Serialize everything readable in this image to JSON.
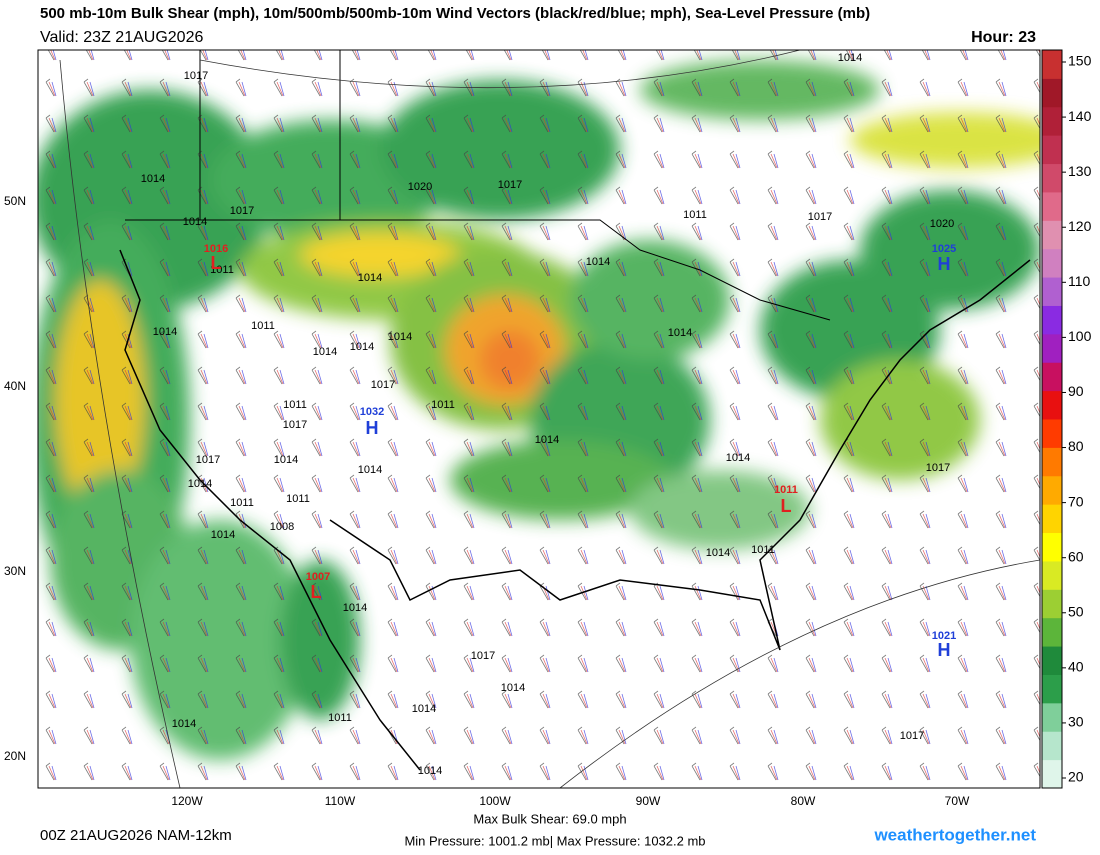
{
  "header": {
    "title": "500 mb-10m Bulk Shear (mph), 10m/500mb/500mb-10m Wind Vectors (black/red/blue; mph), Sea-Level Pressure (mb)",
    "valid": "Valid: 23Z 21AUG2026",
    "hour": "Hour: 23"
  },
  "map": {
    "latitude_labels": [
      "50N",
      "40N",
      "30N",
      "20N"
    ],
    "longitude_labels": [
      "120W",
      "110W",
      "100W",
      "90W",
      "80W",
      "70W"
    ],
    "isobar_labels": [
      "1017",
      "1014",
      "1014",
      "1020",
      "1017",
      "1014",
      "1017",
      "1011",
      "1017",
      "1020",
      "1014",
      "1011",
      "1014",
      "1014",
      "1011",
      "1014",
      "1014",
      "1014",
      "1014",
      "1017",
      "1011",
      "1017",
      "1011",
      "1014",
      "1014",
      "1017",
      "1014",
      "1014",
      "1014",
      "1017",
      "1011",
      "1011",
      "1008",
      "1014",
      "1014",
      "1011",
      "1014",
      "1017",
      "1014",
      "1014",
      "1011",
      "1014",
      "1014",
      "1017"
    ],
    "highs": [
      {
        "pressure": "1032",
        "letter": "H"
      },
      {
        "pressure": "1025",
        "letter": "H"
      },
      {
        "pressure": "1021",
        "letter": "H"
      }
    ],
    "lows": [
      {
        "pressure": "1016",
        "letter": "L"
      },
      {
        "pressure": "1011",
        "letter": "L"
      },
      {
        "pressure": "1007",
        "letter": "L"
      }
    ]
  },
  "colorbar": {
    "ticks": [
      20,
      30,
      40,
      50,
      60,
      70,
      80,
      90,
      100,
      110,
      120,
      130,
      140,
      150
    ],
    "colors": [
      "#dff5ea",
      "#b6e6cc",
      "#7fcf9a",
      "#2c9e4a",
      "#1f8a3b",
      "#5cb53a",
      "#9ccf33",
      "#d9ea23",
      "#ffff00",
      "#ffd400",
      "#ffaa00",
      "#ff7a00",
      "#ff3b00",
      "#e81010",
      "#c81060",
      "#a020c0",
      "#8a2be2",
      "#b060d0",
      "#d080c0",
      "#e090b0",
      "#e06a8a",
      "#d04a6a",
      "#c03050",
      "#b02038",
      "#a01828",
      "#c83030"
    ]
  },
  "footer": {
    "run": "00Z 21AUG2026 NAM-12km",
    "max_shear": "Max Bulk Shear:  69.0 mph",
    "pressure_range": "Min Pressure: 1001.2 mb| Max Pressure: 1032.2 mb",
    "site": "weathertogether.net"
  }
}
